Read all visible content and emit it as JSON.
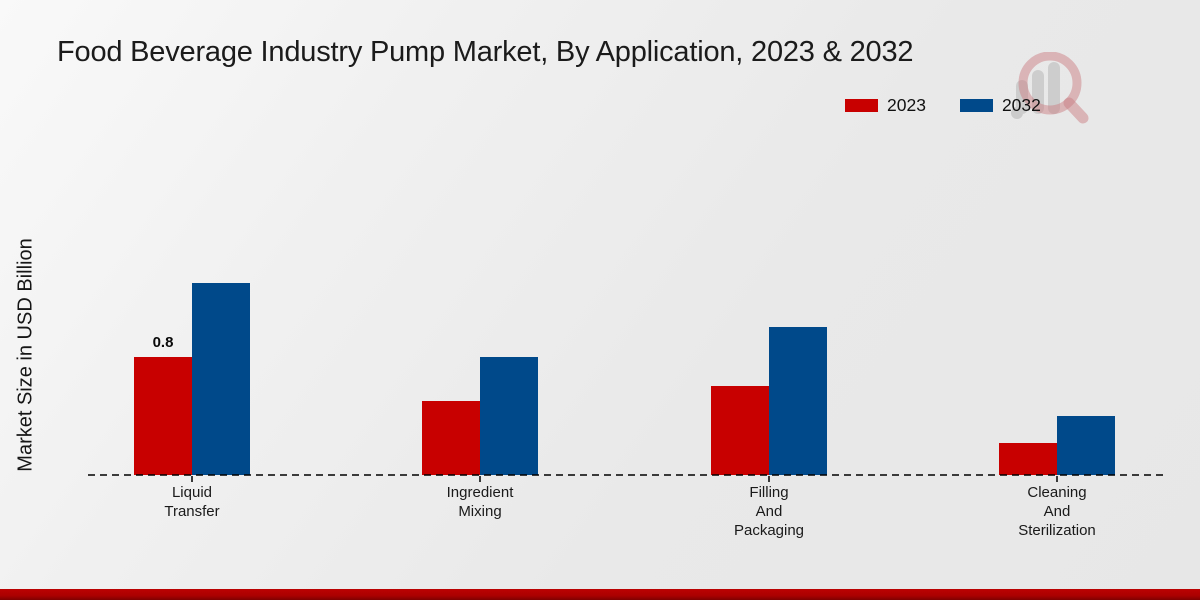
{
  "chart_data": {
    "type": "bar",
    "title": "Food Beverage Industry Pump Market, By Application, 2023 & 2032",
    "ylabel": "Market Size in USD Billion",
    "xlabel": "",
    "categories": [
      [
        "Liquid",
        "Transfer"
      ],
      [
        "Ingredient",
        "Mixing"
      ],
      [
        "Filling",
        "And",
        "Packaging"
      ],
      [
        "Cleaning",
        "And",
        "Sterilization"
      ]
    ],
    "series": [
      {
        "name": "2023",
        "color": "#c80000",
        "values": [
          0.8,
          0.5,
          0.6,
          0.22
        ]
      },
      {
        "name": "2032",
        "color": "#00498a",
        "values": [
          1.3,
          0.8,
          1.0,
          0.4
        ]
      }
    ],
    "annotations": [
      {
        "series_index": 0,
        "point_index": 0,
        "text": "0.8"
      }
    ],
    "ylim": [
      0,
      2.2
    ],
    "grid": false,
    "legend_position": "top-right",
    "baseline_style": "dashed",
    "accent_bar_color": "#ab0101"
  }
}
